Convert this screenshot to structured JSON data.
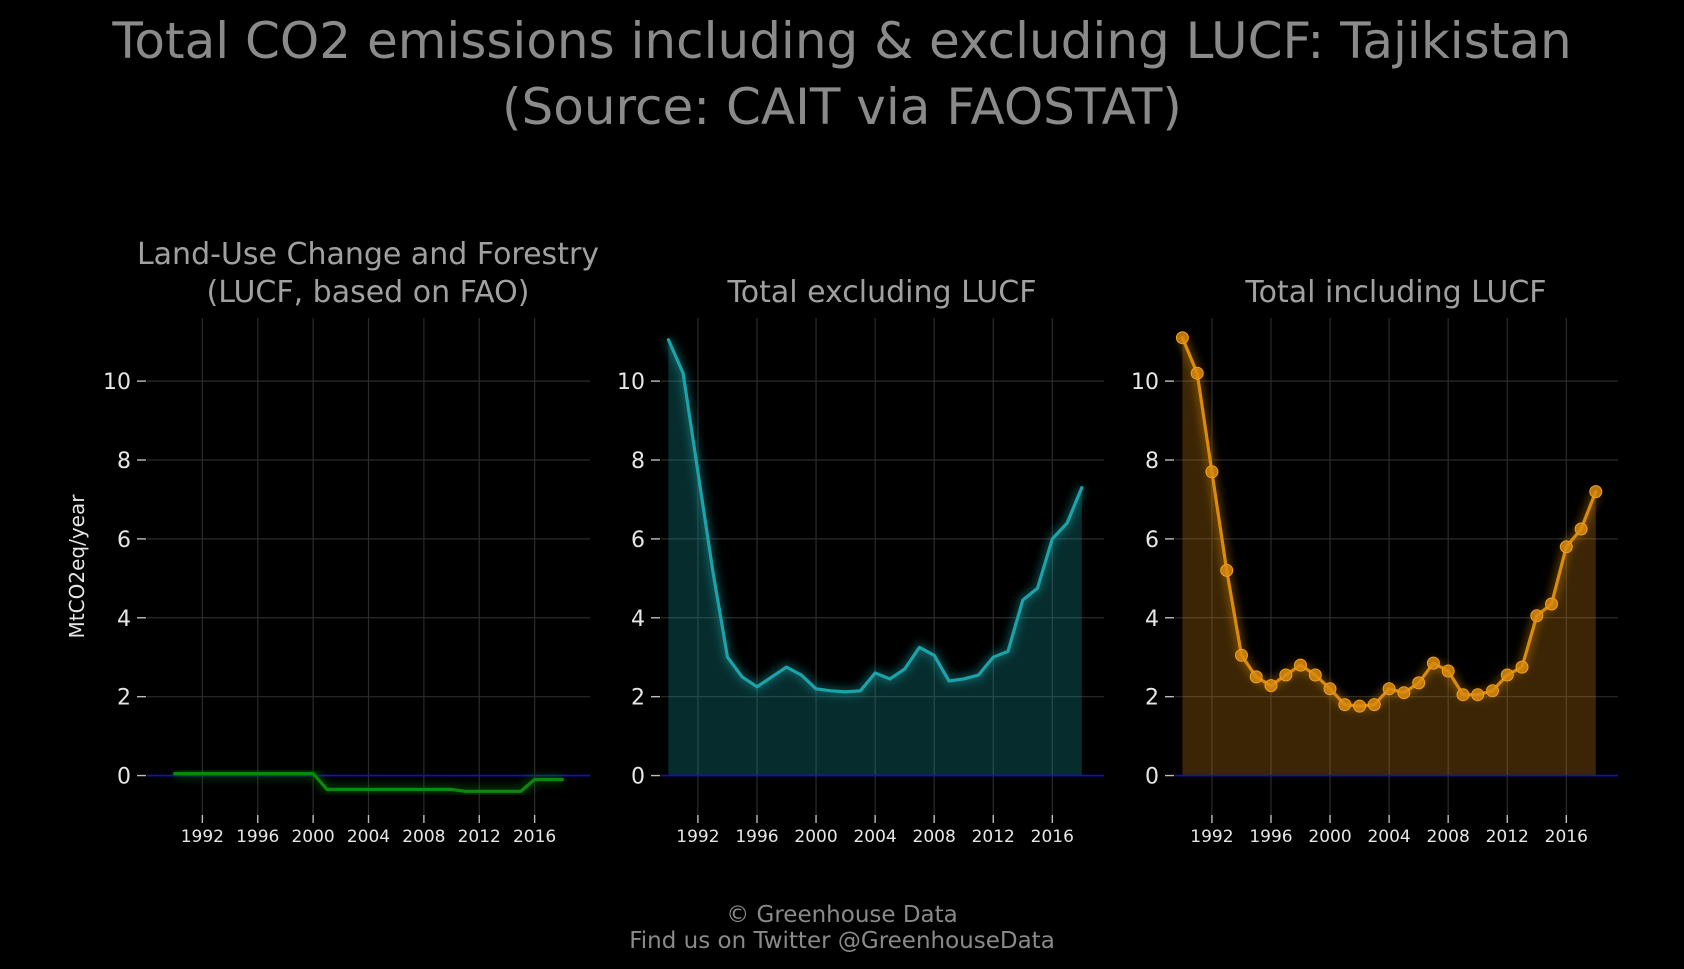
{
  "title_line1": "Total CO2 emissions including & excluding LUCF: Tajikistan",
  "title_line2": "(Source: CAIT via FAOSTAT)",
  "credit_line1": "© Greenhouse Data",
  "credit_line2": "Find us on Twitter @GreenhouseData",
  "colors": {
    "background": "#000000",
    "lucf": "#0a8a0a",
    "excl": "#1aa3a8",
    "incl": "#d98a0f",
    "zero_line": "#1010d0"
  },
  "chart_data": [
    {
      "type": "line",
      "title_line1": "Land-Use Change and Forestry",
      "title_line2": "(LUCF, based on FAO)",
      "ylabel": "MtCO2eq/year",
      "x_ticks": [
        1992,
        1996,
        2000,
        2004,
        2008,
        2012,
        2016
      ],
      "y_ticks": [
        0,
        2,
        4,
        6,
        8,
        10
      ],
      "xlim": [
        1988,
        2020
      ],
      "ylim": [
        -1,
        11.6
      ],
      "series": [
        {
          "x": [
            1990,
            1991,
            1992,
            1993,
            1994,
            1995,
            1996,
            1997,
            1998,
            1999,
            2000,
            2001,
            2002,
            2003,
            2004,
            2005,
            2006,
            2007,
            2008,
            2009,
            2010,
            2011,
            2012,
            2013,
            2014,
            2015,
            2016,
            2017,
            2018
          ],
          "values": [
            0.05,
            0.05,
            0.05,
            0.05,
            0.05,
            0.05,
            0.05,
            0.05,
            0.05,
            0.05,
            0.05,
            -0.35,
            -0.35,
            -0.35,
            -0.35,
            -0.35,
            -0.35,
            -0.35,
            -0.35,
            -0.35,
            -0.35,
            -0.4,
            -0.4,
            -0.4,
            -0.4,
            -0.4,
            -0.1,
            -0.1,
            -0.1
          ]
        }
      ]
    },
    {
      "type": "area",
      "title_line1": "",
      "title_line2": "Total excluding LUCF",
      "x_ticks": [
        1992,
        1996,
        2000,
        2004,
        2008,
        2012,
        2016
      ],
      "y_ticks": [
        0,
        2,
        4,
        6,
        8,
        10
      ],
      "xlim": [
        1989.5,
        2019.5
      ],
      "ylim": [
        -1,
        11.6
      ],
      "series": [
        {
          "x": [
            1990,
            1991,
            1992,
            1993,
            1994,
            1995,
            1996,
            1997,
            1998,
            1999,
            2000,
            2001,
            2002,
            2003,
            2004,
            2005,
            2006,
            2007,
            2008,
            2009,
            2010,
            2011,
            2012,
            2013,
            2014,
            2015,
            2016,
            2017,
            2018
          ],
          "values": [
            11.05,
            10.2,
            7.7,
            5.2,
            3.0,
            2.5,
            2.25,
            2.5,
            2.75,
            2.55,
            2.2,
            2.15,
            2.12,
            2.15,
            2.6,
            2.45,
            2.7,
            3.25,
            3.05,
            2.4,
            2.45,
            2.55,
            3.0,
            3.15,
            4.45,
            4.75,
            6.0,
            6.4,
            7.3
          ]
        }
      ]
    },
    {
      "type": "area",
      "title_line1": "",
      "title_line2": "Total including LUCF",
      "x_ticks": [
        1992,
        1996,
        2000,
        2004,
        2008,
        2012,
        2016
      ],
      "y_ticks": [
        0,
        2,
        4,
        6,
        8,
        10
      ],
      "xlim": [
        1989.5,
        2019.5
      ],
      "ylim": [
        -1,
        11.6
      ],
      "series": [
        {
          "x": [
            1990,
            1991,
            1992,
            1993,
            1994,
            1995,
            1996,
            1997,
            1998,
            1999,
            2000,
            2001,
            2002,
            2003,
            2004,
            2005,
            2006,
            2007,
            2008,
            2009,
            2010,
            2011,
            2012,
            2013,
            2014,
            2015,
            2016,
            2017,
            2018
          ],
          "values": [
            11.1,
            10.2,
            7.7,
            5.2,
            3.05,
            2.5,
            2.28,
            2.55,
            2.8,
            2.55,
            2.2,
            1.8,
            1.76,
            1.8,
            2.2,
            2.1,
            2.35,
            2.85,
            2.65,
            2.05,
            2.05,
            2.15,
            2.55,
            2.75,
            4.05,
            4.35,
            5.8,
            6.25,
            7.2
          ]
        }
      ]
    }
  ]
}
